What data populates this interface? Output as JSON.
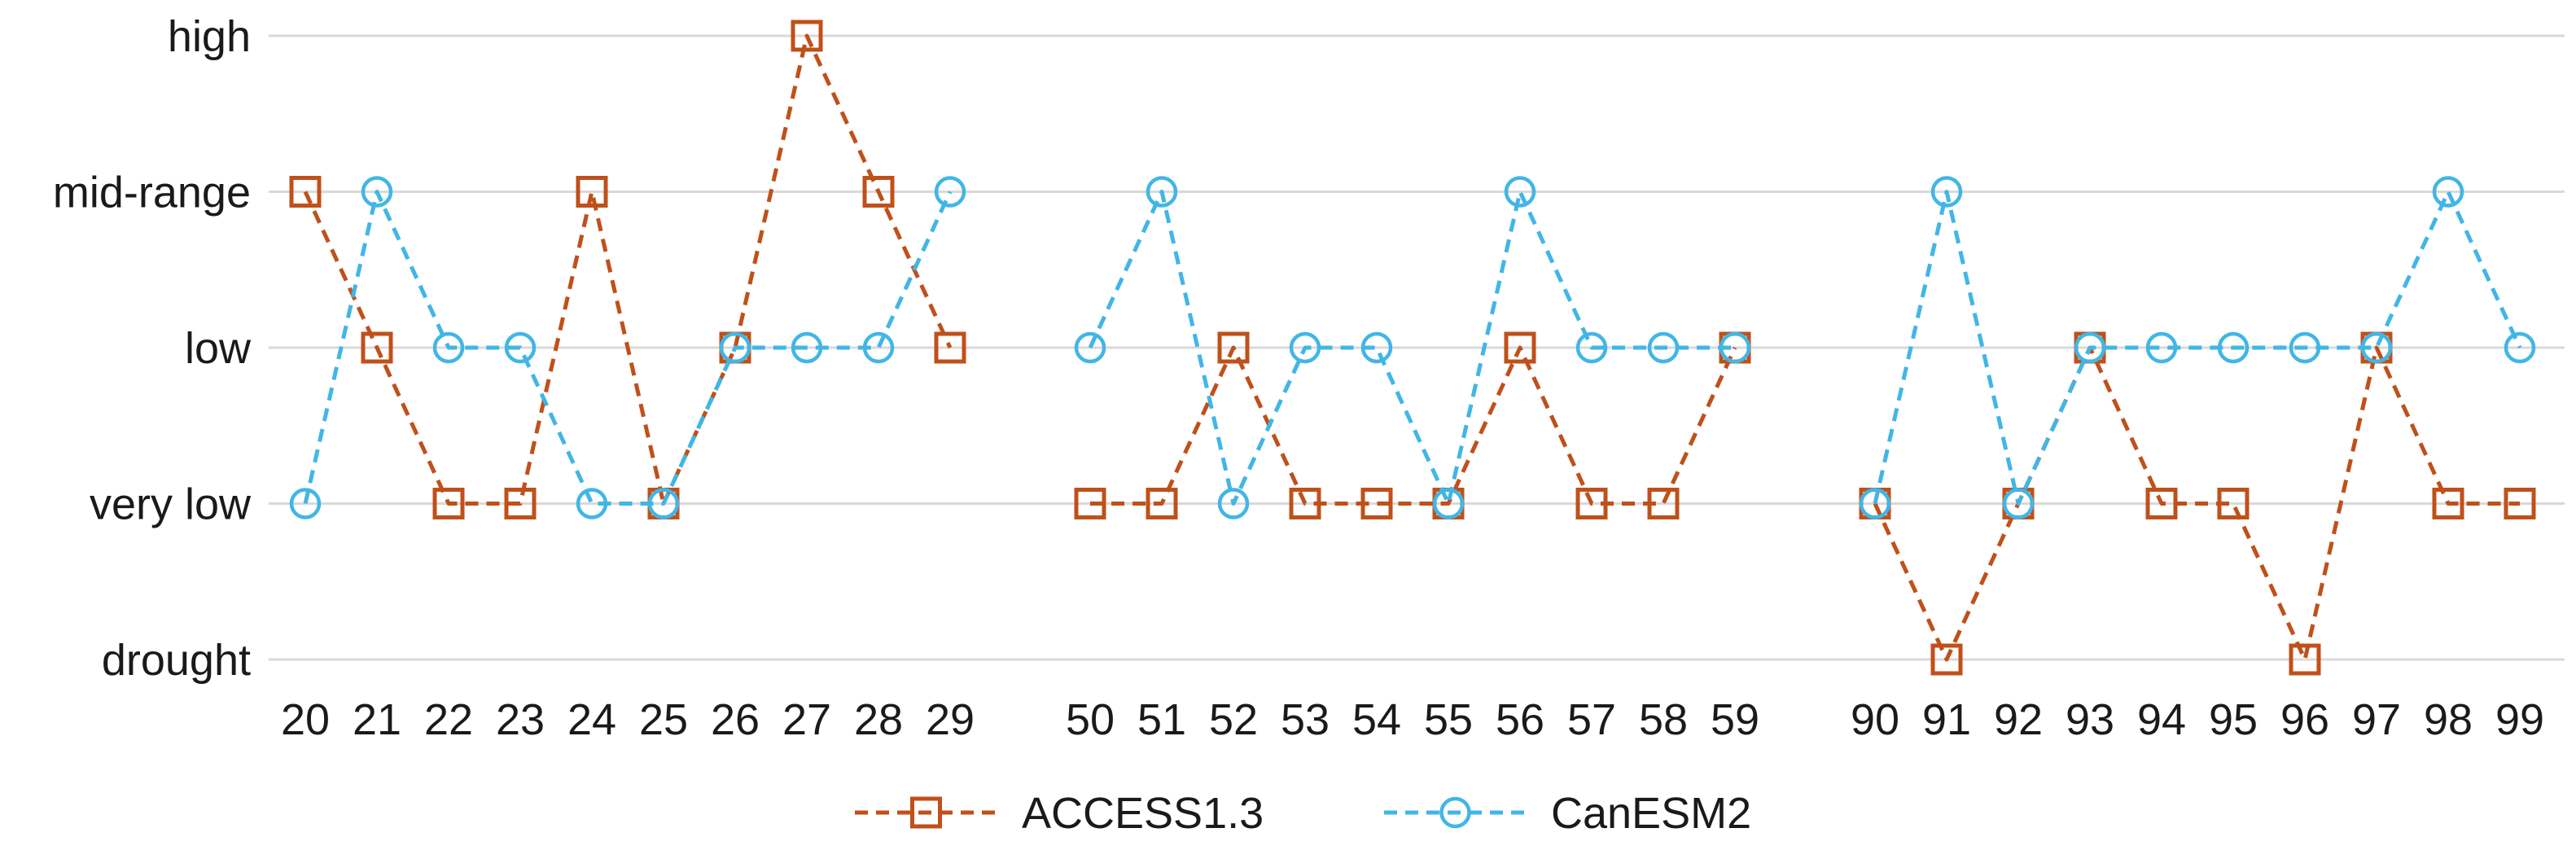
{
  "chart_data": {
    "type": "line",
    "y_categories": [
      "drought",
      "very low",
      "low",
      "mid-range",
      "high"
    ],
    "segments": [
      {
        "x": [
          "20",
          "21",
          "22",
          "23",
          "24",
          "25",
          "26",
          "27",
          "28",
          "29"
        ]
      },
      {
        "x": [
          "50",
          "51",
          "52",
          "53",
          "54",
          "55",
          "56",
          "57",
          "58",
          "59"
        ]
      },
      {
        "x": [
          "90",
          "91",
          "92",
          "93",
          "94",
          "95",
          "96",
          "97",
          "98",
          "99"
        ]
      }
    ],
    "series": [
      {
        "name": "ACCESS1.3",
        "color": "#c0501a",
        "marker": "square",
        "values": [
          [
            "mid-range",
            "low",
            "very low",
            "very low",
            "mid-range",
            "very low",
            "low",
            "high",
            "mid-range",
            "low"
          ],
          [
            "very low",
            "very low",
            "low",
            "very low",
            "very low",
            "very low",
            "low",
            "very low",
            "very low",
            "low"
          ],
          [
            "very low",
            "drought",
            "very low",
            "low",
            "very low",
            "very low",
            "drought",
            "low",
            "very low",
            "very low"
          ]
        ]
      },
      {
        "name": "CanESM2",
        "color": "#41b6e6",
        "marker": "circle",
        "values": [
          [
            "very low",
            "mid-range",
            "low",
            "low",
            "very low",
            "very low",
            "low",
            "low",
            "low",
            "mid-range"
          ],
          [
            "low",
            "mid-range",
            "very low",
            "low",
            "low",
            "very low",
            "mid-range",
            "low",
            "low",
            "low"
          ],
          [
            "very low",
            "mid-range",
            "very low",
            "low",
            "low",
            "low",
            "low",
            "low",
            "mid-range",
            "low"
          ]
        ]
      }
    ],
    "grid": true,
    "legend": "bottom"
  }
}
